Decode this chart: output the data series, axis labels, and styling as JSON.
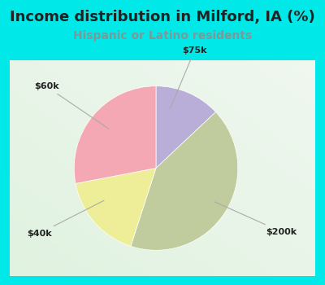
{
  "title": "Income distribution in Milford, IA (%)",
  "subtitle": "Hispanic or Latino residents",
  "slices": [
    {
      "label": "$75k",
      "value": 13,
      "color": "#b8aed8"
    },
    {
      "label": "$200k",
      "value": 42,
      "color": "#c0cc9e"
    },
    {
      "label": "$40k",
      "value": 17,
      "color": "#eeee99"
    },
    {
      "label": "$60k",
      "value": 28,
      "color": "#f4a8b4"
    }
  ],
  "background_color": "#00e8e8",
  "panel_color": "#e8f5ee",
  "title_color": "#222222",
  "subtitle_color": "#7a9a9a",
  "label_color": "#222222",
  "line_color": "#aaaaaa",
  "startangle": 90,
  "title_fontsize": 13,
  "subtitle_fontsize": 10,
  "label_fontsize": 8
}
